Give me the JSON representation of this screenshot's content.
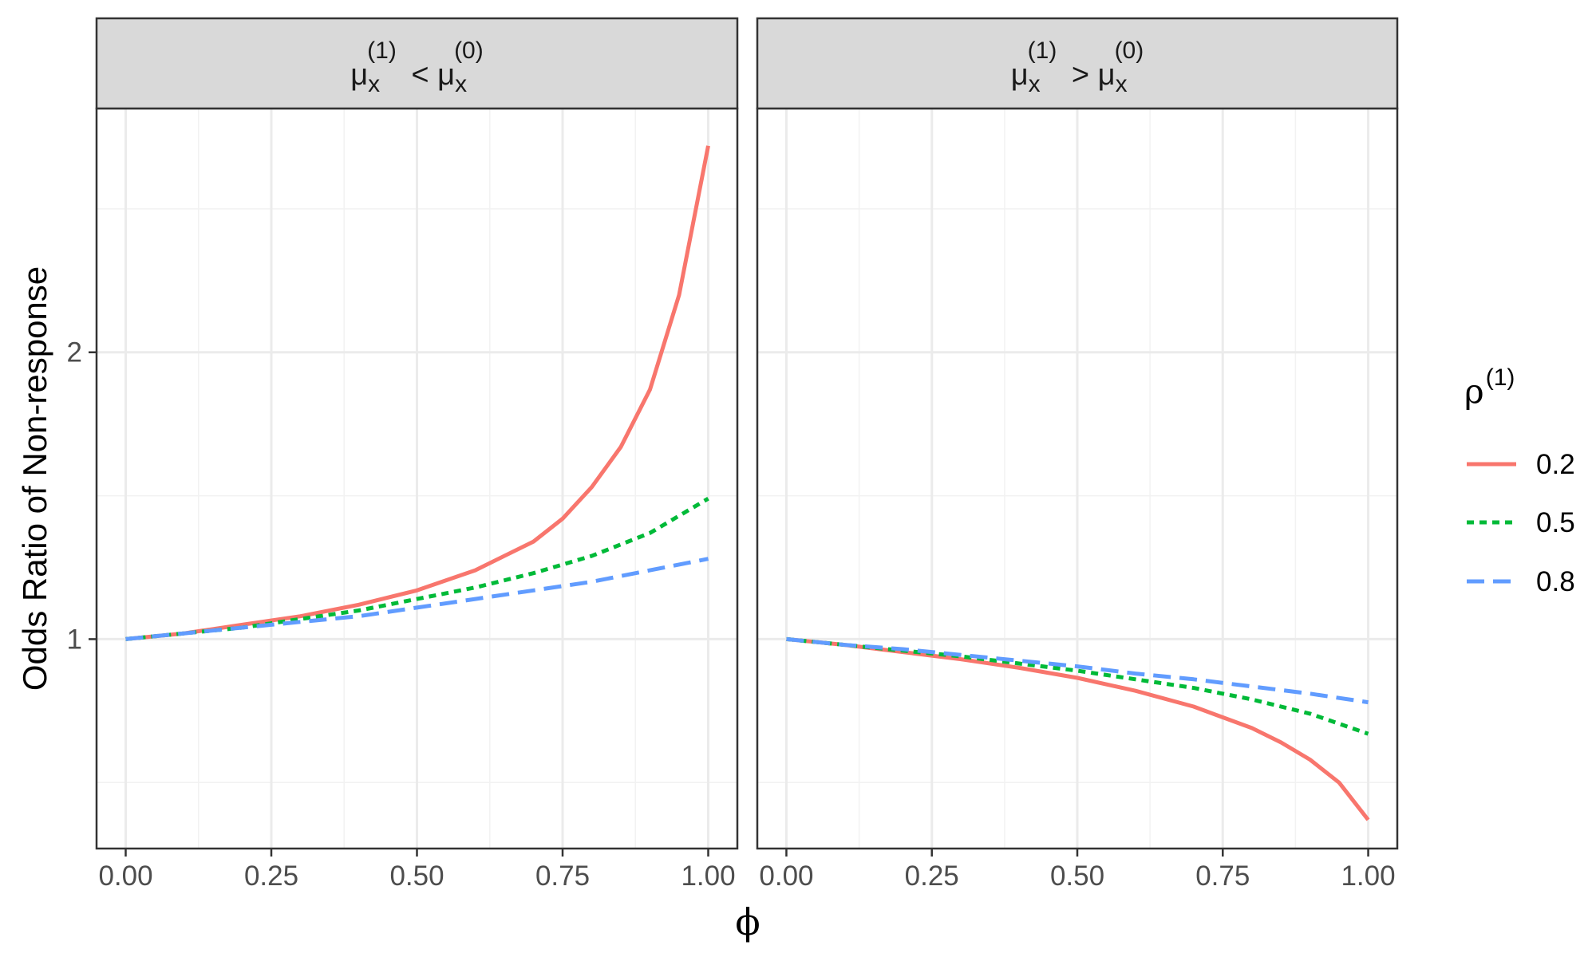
{
  "chart_data": {
    "type": "line",
    "ylabel": "Odds Ratio of Non-response",
    "xlabel": "ϕ",
    "x_ticks": [
      "0.00",
      "0.25",
      "0.50",
      "0.75",
      "1.00"
    ],
    "y_ticks": [
      "1",
      "2"
    ],
    "xlim": [
      -0.05,
      1.05
    ],
    "ylim": [
      0.27,
      2.85
    ],
    "grid": true,
    "legend": {
      "title": "ρ",
      "title_sup": "(1)",
      "position": "right",
      "entries": [
        {
          "label": "0.2",
          "color": "#F8766D",
          "dash": "solid"
        },
        {
          "label": "0.5",
          "color": "#00BA38",
          "dash": "dotted"
        },
        {
          "label": "0.8",
          "color": "#619CFF",
          "dash": "dashed"
        }
      ]
    },
    "panels": [
      {
        "strip": {
          "left": "μ",
          "left_sub": "x",
          "left_sup": "(1)",
          "op": "<",
          "right": "μ",
          "right_sub": "x",
          "right_sup": "(0)"
        },
        "series": [
          {
            "name": "0.2",
            "x": [
              0,
              0.1,
              0.2,
              0.3,
              0.4,
              0.5,
              0.6,
              0.7,
              0.75,
              0.8,
              0.85,
              0.9,
              0.95,
              1.0
            ],
            "y": [
              1.0,
              1.02,
              1.05,
              1.08,
              1.12,
              1.17,
              1.24,
              1.34,
              1.42,
              1.53,
              1.67,
              1.87,
              2.2,
              2.72
            ]
          },
          {
            "name": "0.5",
            "x": [
              0,
              0.1,
              0.2,
              0.3,
              0.4,
              0.5,
              0.6,
              0.7,
              0.8,
              0.9,
              1.0
            ],
            "y": [
              1.0,
              1.02,
              1.04,
              1.07,
              1.1,
              1.14,
              1.18,
              1.23,
              1.29,
              1.37,
              1.49
            ]
          },
          {
            "name": "0.8",
            "x": [
              0,
              0.1,
              0.2,
              0.3,
              0.4,
              0.5,
              0.6,
              0.7,
              0.8,
              0.9,
              1.0
            ],
            "y": [
              1.0,
              1.02,
              1.04,
              1.06,
              1.08,
              1.11,
              1.14,
              1.17,
              1.2,
              1.24,
              1.28
            ]
          }
        ]
      },
      {
        "strip": {
          "left": "μ",
          "left_sub": "x",
          "left_sup": "(1)",
          "op": ">",
          "right": "μ",
          "right_sub": "x",
          "right_sup": "(0)"
        },
        "series": [
          {
            "name": "0.2",
            "x": [
              0,
              0.1,
              0.2,
              0.3,
              0.4,
              0.5,
              0.6,
              0.7,
              0.8,
              0.85,
              0.9,
              0.95,
              1.0
            ],
            "y": [
              1.0,
              0.98,
              0.955,
              0.93,
              0.9,
              0.865,
              0.82,
              0.765,
              0.69,
              0.64,
              0.58,
              0.5,
              0.37
            ]
          },
          {
            "name": "0.5",
            "x": [
              0,
              0.1,
              0.2,
              0.3,
              0.4,
              0.5,
              0.6,
              0.7,
              0.8,
              0.9,
              1.0
            ],
            "y": [
              1.0,
              0.98,
              0.96,
              0.94,
              0.915,
              0.89,
              0.86,
              0.83,
              0.79,
              0.74,
              0.67
            ]
          },
          {
            "name": "0.8",
            "x": [
              0,
              0.1,
              0.2,
              0.3,
              0.4,
              0.5,
              0.6,
              0.7,
              0.8,
              0.9,
              1.0
            ],
            "y": [
              1.0,
              0.98,
              0.965,
              0.945,
              0.925,
              0.905,
              0.88,
              0.86,
              0.835,
              0.81,
              0.78
            ]
          }
        ]
      }
    ]
  }
}
